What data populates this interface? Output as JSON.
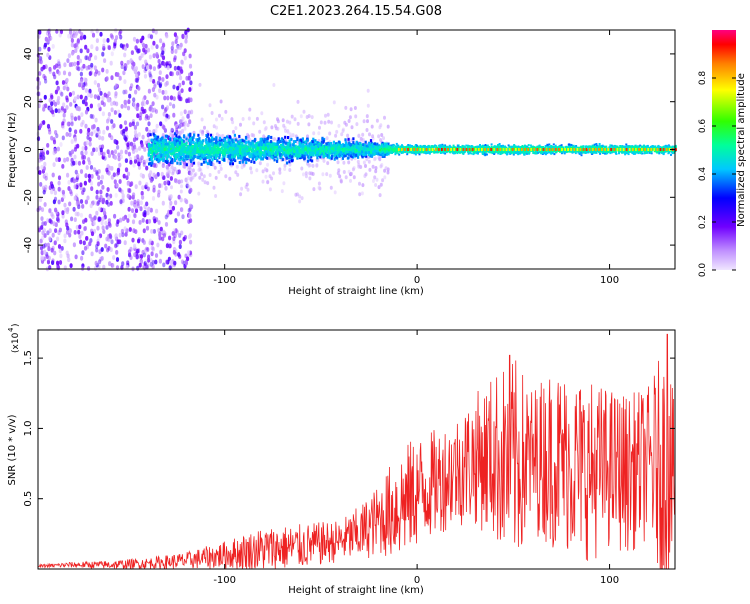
{
  "figure": {
    "title": "C2E1.2023.264.15.54.G08"
  },
  "chart_data": [
    {
      "type": "heatmap",
      "xlabel": "Height of straight line (km)",
      "ylabel": "Frequency (Hz)",
      "xlim": [
        -197,
        134
      ],
      "ylim": [
        -50,
        50
      ],
      "x_ticks": [
        -100,
        0,
        100
      ],
      "y_ticks": [
        -40,
        -20,
        0,
        20,
        40
      ],
      "colorbar": {
        "label": "Normalized spectral amplitude",
        "range": [
          0,
          1
        ],
        "ticks": [
          0.0,
          0.2,
          0.4,
          0.6,
          0.8
        ],
        "tick_labels": [
          "0.0",
          "0.2",
          "0.4",
          "0.6",
          "0.8"
        ],
        "colormap": "rainbow-white-to-red"
      },
      "regions": [
        {
          "x_range": [
            -197,
            -120
          ],
          "freq_spread": 50,
          "amplitude": [
            0.0,
            0.1
          ],
          "description_level": "scattered noise"
        },
        {
          "x_range": [
            -140,
            -20
          ],
          "freq_center": 0,
          "freq_halfwidth": [
            8,
            4
          ],
          "amplitude": [
            0.1,
            0.45
          ]
        },
        {
          "x_range": [
            -20,
            134
          ],
          "freq_center": 0,
          "freq_halfwidth": 2,
          "amplitude": [
            0.3,
            0.9
          ]
        }
      ],
      "colors": {
        "low": "#f0e6ff",
        "mid": "#00ff80",
        "high": "#ff0000"
      }
    },
    {
      "type": "line",
      "xlabel": "Height of straight line (km)",
      "ylabel": "SNR (10 * v/v)",
      "y_multiplier": "(x10",
      "y_multiplier_exp": "4",
      "y_multiplier_close": ")",
      "xlim": [
        -197,
        134
      ],
      "ylim": [
        0,
        1.7
      ],
      "x_ticks": [
        -100,
        0,
        100
      ],
      "y_ticks": [
        0.5,
        1.0,
        1.5
      ],
      "y_tick_labels": [
        "0.5",
        "1.0",
        "1.5"
      ],
      "series": [
        {
          "color": "#ee2222",
          "x": [
            -197,
            -180,
            -160,
            -140,
            -120,
            -100,
            -80,
            -60,
            -40,
            -30,
            -20,
            -10,
            0,
            10,
            20,
            30,
            40,
            50,
            60,
            70,
            80,
            90,
            100,
            110,
            120,
            130,
            134
          ],
          "y": [
            0.02,
            0.03,
            0.03,
            0.04,
            0.06,
            0.1,
            0.14,
            0.16,
            0.2,
            0.25,
            0.35,
            0.45,
            0.55,
            0.62,
            0.7,
            0.78,
            0.8,
            0.75,
            0.78,
            0.8,
            0.75,
            0.7,
            0.72,
            0.68,
            0.75,
            0.7,
            0.6
          ],
          "envelope_max": [
            0.03,
            0.05,
            0.06,
            0.08,
            0.12,
            0.2,
            0.3,
            0.32,
            0.35,
            0.45,
            0.6,
            0.85,
            0.95,
            1.0,
            1.1,
            1.25,
            1.4,
            1.52,
            1.3,
            1.45,
            1.4,
            1.35,
            1.3,
            1.25,
            1.3,
            1.65,
            1.1
          ],
          "peaks": [
            {
              "x": 48,
              "y": 1.52
            },
            {
              "x": 130,
              "y": 1.67
            }
          ]
        }
      ]
    }
  ]
}
